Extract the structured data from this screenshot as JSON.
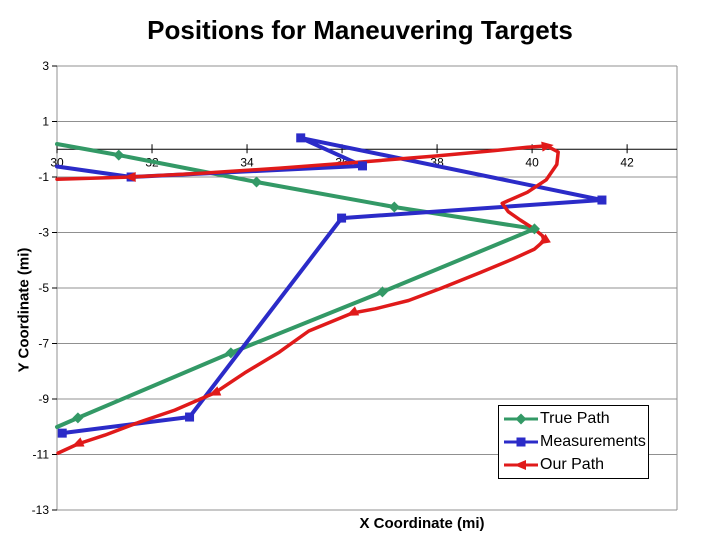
{
  "chart_data": {
    "type": "line",
    "title": "Positions for Maneuvering Targets",
    "xlabel": "X Coordinate (mi)",
    "ylabel": "Y Coordinate (mi)",
    "x_ticks": [
      30,
      32,
      34,
      36,
      38,
      40,
      42
    ],
    "y_ticks": [
      3,
      1,
      -1,
      -3,
      -5,
      -7,
      -9,
      -11,
      -13
    ],
    "xlim": [
      30,
      43.05
    ],
    "ylim": [
      -13,
      3
    ],
    "grid": true,
    "legend_position": "inside-bottom-right",
    "colors": {
      "grid": "#909090",
      "axis": "#000000",
      "text": "#000000",
      "background": "#ffffff"
    },
    "series": [
      {
        "name": "True Path",
        "color": "#339966",
        "marker": "diamond",
        "line_width": 4,
        "points": [
          [
            30,
            0.19
          ],
          [
            31.3,
            -0.21
          ],
          [
            34.2,
            -1.18
          ],
          [
            37.1,
            -2.08
          ],
          [
            40.05,
            -2.87
          ],
          [
            36.85,
            -5.14
          ],
          [
            33.66,
            -7.34
          ],
          [
            30.44,
            -9.68
          ],
          [
            30,
            -10.01
          ]
        ],
        "marker_points": [
          [
            31.3,
            -0.21
          ],
          [
            34.2,
            -1.18
          ],
          [
            37.1,
            -2.08
          ],
          [
            40.05,
            -2.87
          ],
          [
            36.85,
            -5.14
          ],
          [
            33.66,
            -7.34
          ],
          [
            30.44,
            -9.68
          ]
        ]
      },
      {
        "name": "Measurements",
        "color": "#2B2BC8",
        "marker": "square",
        "line_width": 4,
        "points": [
          [
            30,
            -0.62
          ],
          [
            31.56,
            -1.0
          ],
          [
            36.43,
            -0.6
          ],
          [
            35.13,
            0.41
          ],
          [
            41.47,
            -1.83
          ],
          [
            35.99,
            -2.48
          ],
          [
            32.79,
            -9.65
          ],
          [
            30.11,
            -10.23
          ]
        ],
        "marker_points": [
          [
            31.56,
            -1.0
          ],
          [
            36.43,
            -0.6
          ],
          [
            35.13,
            0.41
          ],
          [
            41.47,
            -1.83
          ],
          [
            35.99,
            -2.48
          ],
          [
            32.79,
            -9.65
          ],
          [
            30.11,
            -10.23
          ]
        ]
      },
      {
        "name": "Our Path",
        "color": "#E01A1A",
        "marker": "arrow",
        "line_width": 3.5,
        "smooth": true,
        "points": [
          [
            30,
            -1.08
          ],
          [
            31.55,
            -1.0
          ],
          [
            33.0,
            -0.87
          ],
          [
            34.7,
            -0.68
          ],
          [
            36.4,
            -0.46
          ],
          [
            38.0,
            -0.24
          ],
          [
            39.2,
            -0.05
          ],
          [
            39.9,
            0.07
          ],
          [
            40.31,
            0.12
          ],
          [
            40.55,
            -0.1
          ],
          [
            40.52,
            -0.55
          ],
          [
            40.3,
            -1.1
          ],
          [
            39.9,
            -1.55
          ],
          [
            39.5,
            -1.85
          ],
          [
            39.37,
            -1.95
          ],
          [
            39.5,
            -2.25
          ],
          [
            39.75,
            -2.55
          ],
          [
            40.05,
            -2.88
          ],
          [
            40.22,
            -3.12
          ],
          [
            40.25,
            -3.3
          ],
          [
            40.05,
            -3.6
          ],
          [
            39.6,
            -3.95
          ],
          [
            38.9,
            -4.45
          ],
          [
            38.1,
            -5.0
          ],
          [
            37.4,
            -5.45
          ],
          [
            36.7,
            -5.75
          ],
          [
            36.22,
            -5.9
          ],
          [
            35.3,
            -6.55
          ],
          [
            34.68,
            -7.31
          ],
          [
            33.95,
            -8.06
          ],
          [
            33.32,
            -8.78
          ],
          [
            32.48,
            -9.4
          ],
          [
            31.74,
            -9.83
          ],
          [
            31.01,
            -10.3
          ],
          [
            30.44,
            -10.62
          ],
          [
            30.02,
            -10.95
          ]
        ],
        "marker_points": [
          [
            40.31,
            0.12,
            -8
          ],
          [
            40.25,
            -3.3,
            148
          ],
          [
            36.22,
            -5.9,
            155
          ],
          [
            33.32,
            -8.78,
            157
          ],
          [
            30.44,
            -10.62,
            156
          ],
          [
            31.55,
            -1.0,
            180
          ]
        ]
      }
    ]
  }
}
